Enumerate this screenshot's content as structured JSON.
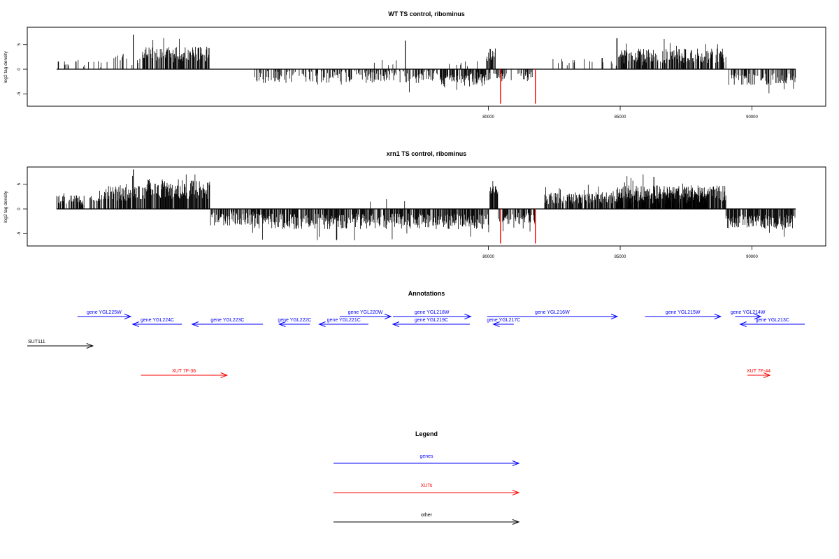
{
  "chart_data": [
    {
      "type": "bar",
      "title": "WT TS control, ribominus",
      "ylabel": "log2 tag density",
      "xlim": [
        62500,
        92800
      ],
      "ylim": [
        -7.5,
        8.5
      ],
      "xticks": [
        80000,
        85000,
        90000
      ],
      "yticks": [
        -5,
        0,
        5
      ],
      "seed": 11,
      "density_segments": [
        {
          "start": 63500,
          "end": 65500,
          "sign": 1,
          "base": 1.2,
          "var": 0.8,
          "density": 0.15
        },
        {
          "start": 65500,
          "end": 67200,
          "sign": 1,
          "base": 1.8,
          "var": 1.0,
          "density": 0.15
        },
        {
          "start": 67200,
          "end": 70100,
          "sign": 1,
          "base": 3.0,
          "var": 1.6,
          "density": 0.7
        },
        {
          "start": 72000,
          "end": 79900,
          "sign": -1,
          "base": 1.5,
          "var": 1.3,
          "density": 0.45
        },
        {
          "start": 79900,
          "end": 84000,
          "sign": -1,
          "base": 1.5,
          "var": 1.0,
          "density": 0.35
        },
        {
          "start": 77000,
          "end": 79000,
          "sign": 1,
          "base": 1.5,
          "var": 0.8,
          "density": 0.06
        },
        {
          "start": 80000,
          "end": 81900,
          "sign": -1,
          "base": 2.2,
          "var": 1.3,
          "density": 0.65
        },
        {
          "start": 80100,
          "end": 81600,
          "sign": 1,
          "base": 1.0,
          "var": 0.7,
          "density": 0.05
        },
        {
          "start": 82000,
          "end": 82400,
          "sign": 1,
          "base": 3.0,
          "var": 1.3,
          "density": 0.8
        },
        {
          "start": 82400,
          "end": 82650,
          "sign": -1,
          "base": 1.3,
          "var": 0.6,
          "density": 0.5
        },
        {
          "start": 84500,
          "end": 91500,
          "sign": 1,
          "base": 1.6,
          "var": 1.0,
          "density": 0.12
        },
        {
          "start": 87600,
          "end": 92300,
          "sign": 1,
          "base": 2.7,
          "var": 1.5,
          "density": 0.7
        },
        {
          "start": 92300,
          "end": 95300,
          "sign": -1,
          "base": 2.0,
          "var": 1.2,
          "density": 0.55
        }
      ],
      "spikes": [
        {
          "x": 66800,
          "y": 7.0
        },
        {
          "x": 78500,
          "y": 5.8
        },
        {
          "x": 82600,
          "y": -7.0,
          "color": "#ff0000"
        },
        {
          "x": 84100,
          "y": -7.0,
          "color": "#ff0000"
        }
      ]
    },
    {
      "type": "bar",
      "title": "xrn1 TS control, ribominus",
      "ylabel": "log2 tag density",
      "xlim": [
        62500,
        92800
      ],
      "ylim": [
        -7.5,
        8.5
      ],
      "xticks": [
        80000,
        85000,
        90000
      ],
      "yticks": [
        -5,
        0,
        5
      ],
      "seed": 29,
      "density_segments": [
        {
          "start": 63500,
          "end": 65500,
          "sign": 1,
          "base": 1.8,
          "var": 1.0,
          "density": 0.6
        },
        {
          "start": 65500,
          "end": 67200,
          "sign": 1,
          "base": 3.2,
          "var": 1.5,
          "density": 0.85
        },
        {
          "start": 67200,
          "end": 70100,
          "sign": 1,
          "base": 4.0,
          "var": 2.0,
          "density": 0.85
        },
        {
          "start": 70100,
          "end": 72000,
          "sign": -1,
          "base": 2.0,
          "var": 1.5,
          "density": 0.7
        },
        {
          "start": 72000,
          "end": 79900,
          "sign": -1,
          "base": 2.5,
          "var": 1.6,
          "density": 0.75
        },
        {
          "start": 79900,
          "end": 82100,
          "sign": -1,
          "base": 2.6,
          "var": 1.6,
          "density": 0.8
        },
        {
          "start": 77000,
          "end": 79000,
          "sign": 1,
          "base": 1.0,
          "var": 0.6,
          "density": 0.08
        },
        {
          "start": 82100,
          "end": 82500,
          "sign": 1,
          "base": 4.0,
          "var": 1.5,
          "density": 0.9
        },
        {
          "start": 82500,
          "end": 84100,
          "sign": -1,
          "base": 2.0,
          "var": 1.2,
          "density": 0.7
        },
        {
          "start": 84500,
          "end": 91500,
          "sign": 1,
          "base": 2.2,
          "var": 1.2,
          "density": 0.75
        },
        {
          "start": 87600,
          "end": 92300,
          "sign": 1,
          "base": 3.2,
          "var": 1.6,
          "density": 0.85
        },
        {
          "start": 92300,
          "end": 95300,
          "sign": -1,
          "base": 2.6,
          "var": 1.4,
          "density": 0.75
        }
      ],
      "spikes": [
        {
          "x": 66800,
          "y": 8.0
        },
        {
          "x": 89200,
          "y": 6.5
        },
        {
          "x": 82600,
          "y": -7.0,
          "color": "#ff0000"
        },
        {
          "x": 84100,
          "y": -7.0,
          "color": "#ff0000"
        }
      ]
    }
  ],
  "annotations": {
    "title": "Annotations",
    "features": [
      {
        "label": "gene YGL225W",
        "strand": "+",
        "row": 0,
        "start": 64100,
        "end": 66700,
        "type": "gene"
      },
      {
        "label": "gene YGL224C",
        "strand": "-",
        "row": 1,
        "start": 66800,
        "end": 69200,
        "type": "gene"
      },
      {
        "label": "gene YGL223C",
        "strand": "-",
        "row": 1,
        "start": 69700,
        "end": 73150,
        "type": "gene"
      },
      {
        "label": "gene YGL222C",
        "strand": "-",
        "row": 1,
        "start": 73950,
        "end": 75450,
        "type": "gene"
      },
      {
        "label": "gene YGL221C",
        "strand": "-",
        "row": 1,
        "start": 75900,
        "end": 78300,
        "type": "gene"
      },
      {
        "label": "gene YGL220W",
        "strand": "+",
        "row": 0,
        "start": 76900,
        "end": 79400,
        "type": "gene"
      },
      {
        "label": "gene YGL219C",
        "strand": "-",
        "row": 1,
        "start": 79500,
        "end": 83250,
        "type": "gene"
      },
      {
        "label": "gene YGL218W",
        "strand": "+",
        "row": 0,
        "start": 79500,
        "end": 83300,
        "type": "gene"
      },
      {
        "label": "gene YGL217C",
        "strand": "-",
        "row": 1,
        "start": 84400,
        "end": 85400,
        "type": "gene"
      },
      {
        "label": "gene YGL216W",
        "strand": "+",
        "row": 0,
        "start": 84100,
        "end": 90450,
        "type": "gene"
      },
      {
        "label": "gene YGL215W",
        "strand": "+",
        "row": 0,
        "start": 91800,
        "end": 95500,
        "type": "gene"
      },
      {
        "label": "gene YGL214W",
        "strand": "+",
        "row": 0,
        "start": 96200,
        "end": 97450,
        "type": "gene"
      },
      {
        "label": "gene YGL213C",
        "strand": "-",
        "row": 1,
        "start": 96450,
        "end": 99600,
        "type": "gene"
      },
      {
        "label": "SUT111",
        "strand": "+",
        "row": 2,
        "start": 61650,
        "end": 64850,
        "type": "other",
        "label_align": "start"
      },
      {
        "label": "XUT 7F-36",
        "strand": "+",
        "row": 3,
        "start": 67200,
        "end": 71400,
        "type": "xut"
      },
      {
        "label": "XUT 7F-44",
        "strand": "+",
        "row": 3,
        "start": 96800,
        "end": 97900,
        "type": "xut"
      }
    ]
  },
  "legend": {
    "title": "Legend",
    "items": [
      {
        "label": "genes",
        "type": "gene"
      },
      {
        "label": "XUTs",
        "type": "xut"
      },
      {
        "label": "other",
        "type": "other"
      }
    ]
  },
  "colors": {
    "gene": "#0000ff",
    "xut": "#ff0000",
    "other": "#000000",
    "signal": "#000000"
  }
}
